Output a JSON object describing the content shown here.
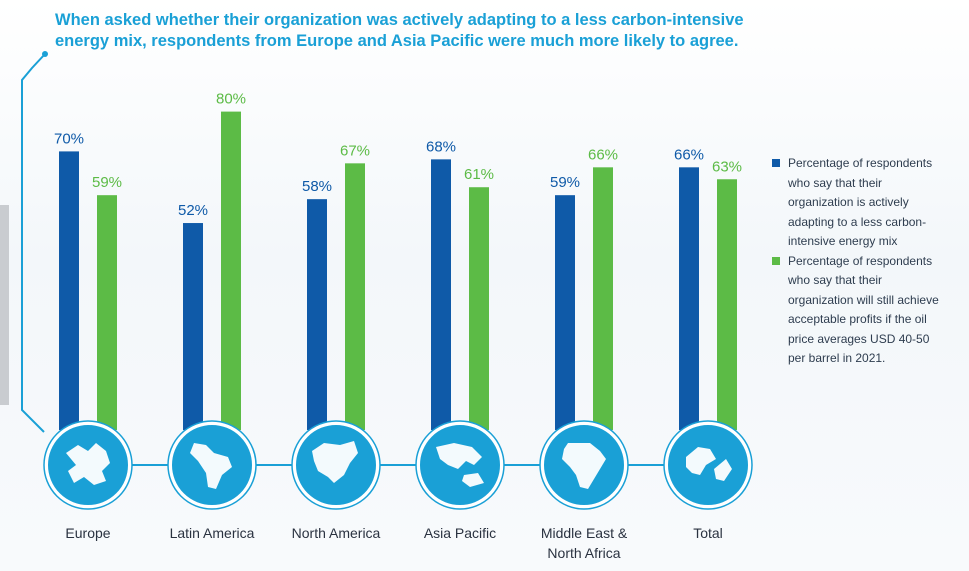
{
  "title_lines": [
    "When asked whether their organization was actively adapting to a less carbon-intensive",
    "energy mix, respondents from Europe and Asia Pacific were much more likely to agree."
  ],
  "colors": {
    "blue": "#0f5aa8",
    "green": "#5cbb46",
    "accent": "#1aa0d6",
    "circle": "#1aa0d6"
  },
  "chart_data": {
    "type": "bar",
    "categories": [
      "Europe",
      "Latin America",
      "North America",
      "Asia Pacific",
      "Middle East & North Africa",
      "Total"
    ],
    "category_lines": [
      [
        "Europe"
      ],
      [
        "Latin America"
      ],
      [
        "North America"
      ],
      [
        "Asia Pacific"
      ],
      [
        "Middle East &",
        "North Africa"
      ],
      [
        "Total"
      ]
    ],
    "category_icons": [
      "europe-map-icon",
      "latin-america-map-icon",
      "north-america-map-icon",
      "asia-pacific-map-icon",
      "africa-map-icon",
      "globe-icon"
    ],
    "series": [
      {
        "name": "Percentage of respondents who say that their organization is actively adapting to a less carbon-intensive energy mix",
        "color": "#0f5aa8",
        "values": [
          70,
          52,
          58,
          68,
          59,
          66
        ],
        "labels": [
          "70%",
          "52%",
          "58%",
          "68%",
          "59%",
          "66%"
        ]
      },
      {
        "name": "Percentage of respondents who say that their organization will still achieve acceptable profits if the oil price averages USD 40-50 per barrel in 2021.",
        "color": "#5cbb46",
        "values": [
          59,
          80,
          67,
          61,
          66,
          63
        ],
        "labels": [
          "59%",
          "80%",
          "67%",
          "61%",
          "66%",
          "63%"
        ]
      }
    ],
    "ylim": [
      0,
      80
    ],
    "grid": false,
    "legend_position": "right"
  },
  "legend": [
    {
      "lines": [
        "Percentage of respondents",
        "who say that their",
        "organization is actively",
        "adapting to a less carbon-",
        "intensive energy mix"
      ],
      "color": "#0f5aa8"
    },
    {
      "lines": [
        "Percentage of respondents",
        "who say that their",
        "organization will still achieve",
        "acceptable profits if the oil",
        "price averages USD 40-50",
        "per barrel in 2021."
      ],
      "color": "#5cbb46"
    }
  ]
}
